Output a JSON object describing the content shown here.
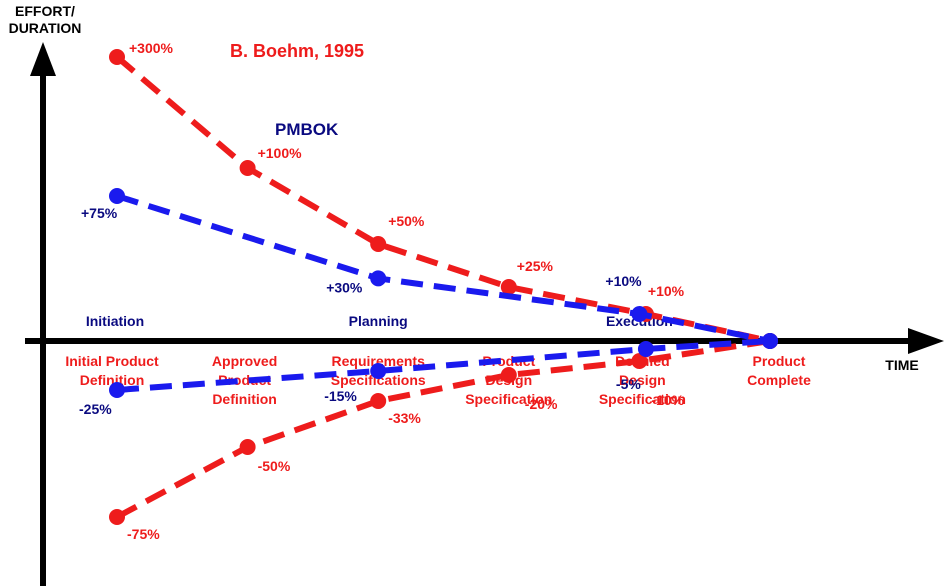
{
  "chart_data": {
    "type": "line",
    "title": "",
    "ylabel": "EFFORT/\nDURATION",
    "xlabel": "TIME",
    "phases": [
      "Initiation",
      "Planning",
      "Execution"
    ],
    "milestones": [
      "Initial Product\nDefinition",
      "Approved\nProduct\nDefinition",
      "Requirements\nSpecifications",
      "Product\nDesign\nSpecification",
      "Detailed\nDesign\nSpecification",
      "Product\nComplete"
    ],
    "series": [
      {
        "name": "B. Boehm, 1995",
        "color": "#ee1c1c",
        "upper": {
          "points": [
            [
              0,
              300
            ],
            [
              1,
              100
            ],
            [
              2,
              50
            ],
            [
              3,
              25
            ],
            [
              4.05,
              10
            ],
            [
              5,
              0
            ]
          ],
          "labels": [
            "+300%",
            "+100%",
            "+50%",
            "+25%",
            "+10%"
          ]
        },
        "lower": {
          "points": [
            [
              0,
              -75
            ],
            [
              1,
              -50
            ],
            [
              2,
              -33
            ],
            [
              3,
              -20
            ],
            [
              4,
              -10
            ],
            [
              5,
              0
            ]
          ],
          "labels": [
            "-75%",
            "-50%",
            "-33%",
            "-20%",
            "-10%"
          ]
        }
      },
      {
        "name": "PMBOK",
        "color": "#1a1aee",
        "label_color": "#0a0a80",
        "upper": {
          "points": [
            [
              0,
              75
            ],
            [
              2,
              30
            ],
            [
              4,
              10
            ],
            [
              5,
              0
            ]
          ],
          "labels": [
            "+75%",
            "+30%",
            "+10%"
          ]
        },
        "lower": {
          "points": [
            [
              0,
              -25
            ],
            [
              2,
              -15
            ],
            [
              4.05,
              -5
            ],
            [
              5,
              0
            ]
          ],
          "labels": [
            "-25%",
            "-15%",
            "-5%"
          ]
        }
      }
    ]
  }
}
